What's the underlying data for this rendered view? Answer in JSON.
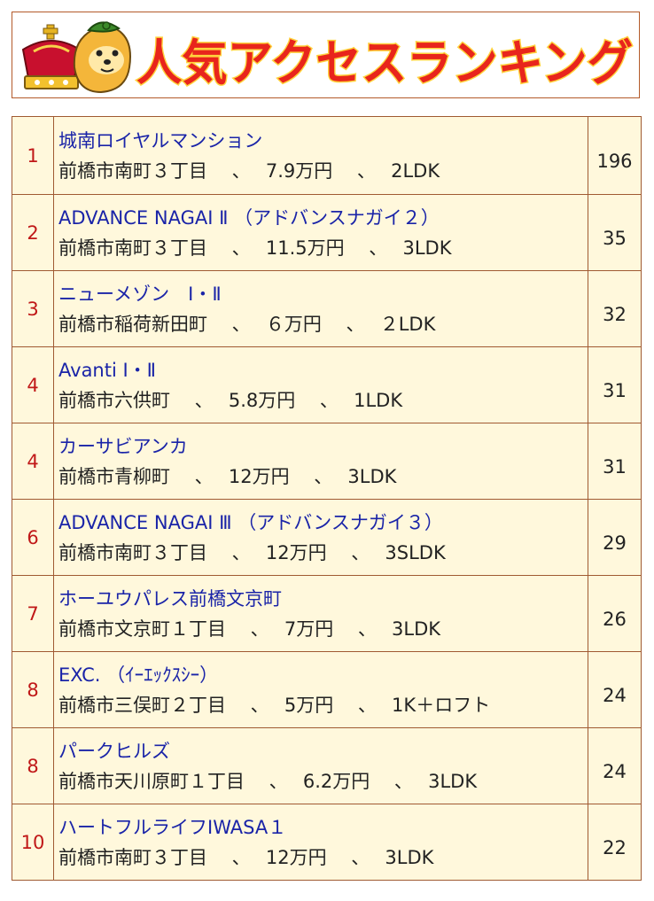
{
  "header": {
    "title": "人気アクセスランキング",
    "colors": {
      "title_fill": "#e8251c",
      "title_outline": "#ffd23c",
      "border": "#b35a2a"
    },
    "crown_icon": "crown-icon",
    "mascot_icon": "mascot-icon"
  },
  "ranking": {
    "colors": {
      "background": "#fff8dc",
      "border": "#a05a32",
      "rank_text": "#c01818",
      "name_text": "#1a24a8",
      "detail_text": "#222222"
    },
    "items": [
      {
        "rank": "1",
        "name": "城南ロイヤルマンション",
        "detail": "前橋市南町３丁目　 、　 7.9万円　 、　 2LDK",
        "count": "196"
      },
      {
        "rank": "2",
        "name": "ADVANCE NAGAI Ⅱ （アドバンスナガイ２）",
        "detail": "前橋市南町３丁目　 、　 11.5万円　 、　 3LDK",
        "count": "35"
      },
      {
        "rank": "3",
        "name": "ニューメゾン　Ⅰ・Ⅱ",
        "detail": "前橋市稲荷新田町　 、　 ６万円　 、　 ２LDK",
        "count": "32"
      },
      {
        "rank": "4",
        "name": "Avanti Ⅰ・Ⅱ",
        "detail": "前橋市六供町　 、　 5.8万円　 、　 1LDK",
        "count": "31"
      },
      {
        "rank": "4",
        "name": "カーサビアンカ",
        "detail": "前橋市青柳町　 、　 12万円　 、　 3LDK",
        "count": "31"
      },
      {
        "rank": "6",
        "name": "ADVANCE NAGAI Ⅲ （アドバンスナガイ３）",
        "detail": "前橋市南町３丁目　 、　 12万円　 、　 3SLDK",
        "count": "29"
      },
      {
        "rank": "7",
        "name": "ホーユウパレス前橋文京町",
        "detail": "前橋市文京町１丁目　 、　 7万円　 、　 3LDK",
        "count": "26"
      },
      {
        "rank": "8",
        "name": "EXC. （ｲｰｴｯｸｽｼｰ）",
        "detail": "前橋市三俣町２丁目　 、　 5万円　 、　 1K＋ロフト",
        "count": "24"
      },
      {
        "rank": "8",
        "name": "パークヒルズ",
        "detail": "前橋市天川原町１丁目　 、　 6.2万円　 、　 3LDK",
        "count": "24"
      },
      {
        "rank": "10",
        "name": "ハートフルライフIWASA１",
        "detail": "前橋市南町３丁目　 、　 12万円　 、　 3LDK",
        "count": "22"
      }
    ]
  }
}
